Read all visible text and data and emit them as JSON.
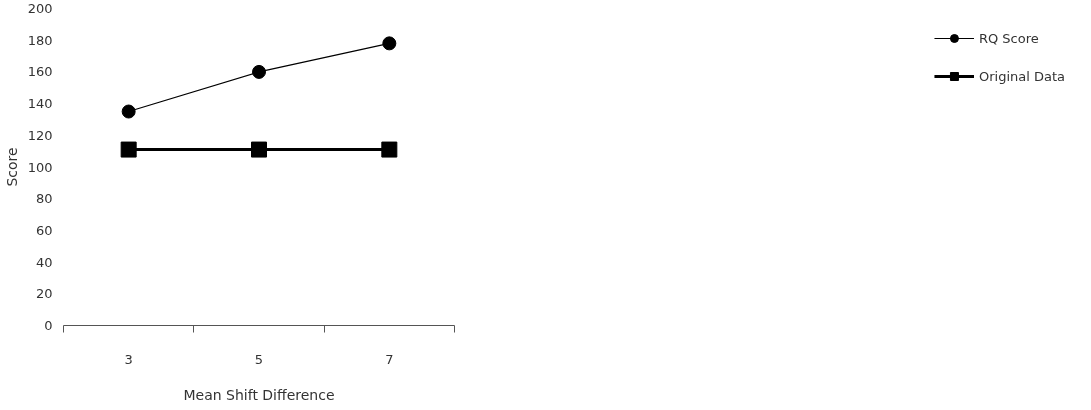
{
  "chart_data": {
    "type": "line",
    "xlabel": "Mean Shift Difference",
    "ylabel": "Score",
    "categories": [
      "3",
      "5",
      "7"
    ],
    "series": [
      {
        "name": "RQ Score",
        "color": "#000000",
        "marker": "circle",
        "values": [
          135,
          160,
          178
        ]
      },
      {
        "name": "Original Data",
        "color": "#000000",
        "marker": "square",
        "values": [
          111,
          111,
          111
        ]
      }
    ],
    "ylim": [
      0,
      200
    ],
    "yticks": [
      0,
      20,
      40,
      60,
      80,
      100,
      120,
      140,
      160,
      180,
      200
    ],
    "grid": false,
    "legend": "right"
  }
}
